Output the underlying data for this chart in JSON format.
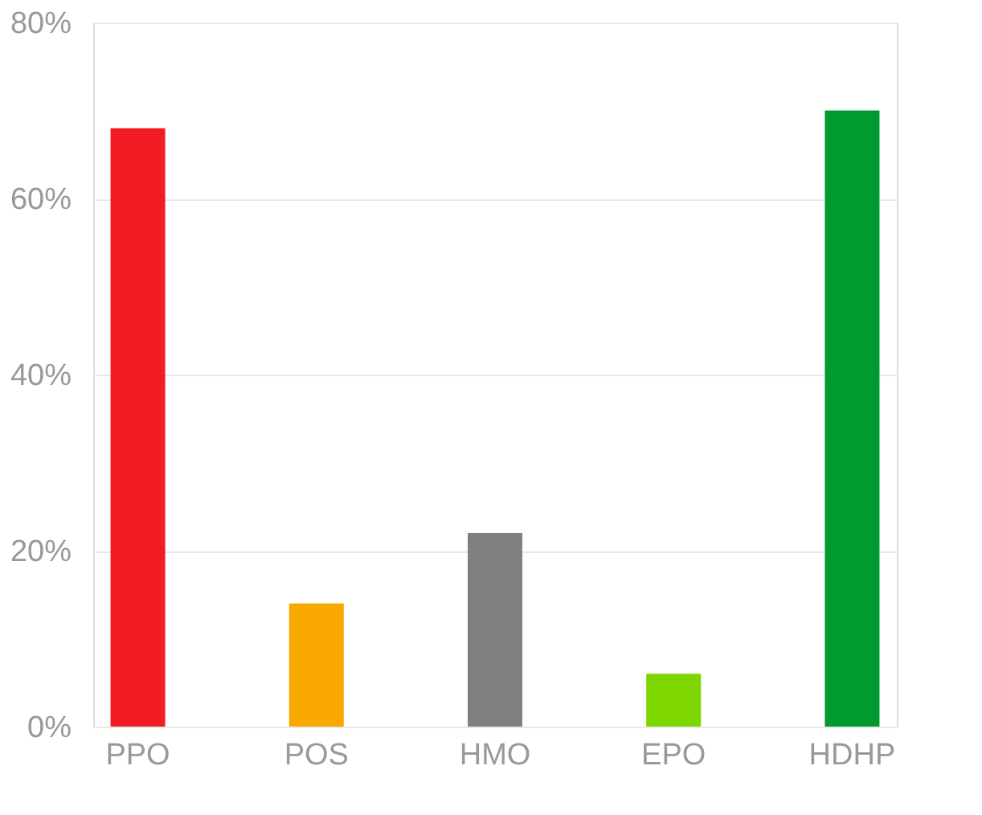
{
  "chart_data": {
    "type": "bar",
    "categories": [
      "PPO",
      "POS",
      "HMO",
      "EPO",
      "HDHP"
    ],
    "values": [
      68,
      14,
      22,
      6,
      70
    ],
    "colors": [
      "#f21c24",
      "#f9a800",
      "#808080",
      "#7ed600",
      "#009a2e"
    ],
    "ylim": [
      0,
      80
    ],
    "yticks": [
      {
        "value": 0,
        "label": "0%"
      },
      {
        "value": 20,
        "label": "20%"
      },
      {
        "value": 40,
        "label": "40%"
      },
      {
        "value": 60,
        "label": "60%"
      },
      {
        "value": 80,
        "label": "80%"
      }
    ],
    "grid": "y"
  }
}
